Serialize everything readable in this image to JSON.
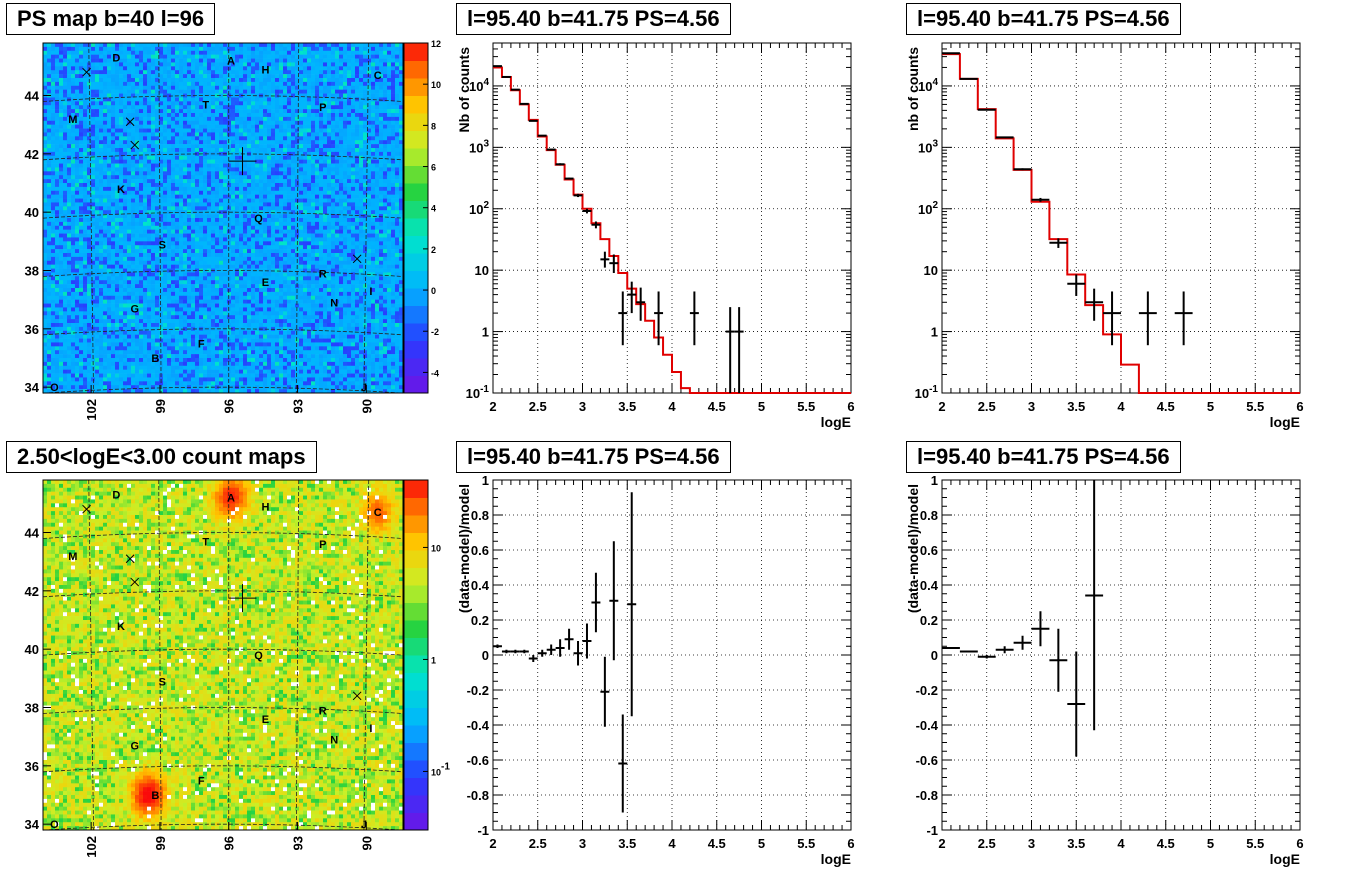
{
  "chart_data": [
    {
      "id": "ps-map",
      "type": "heatmap",
      "title": "PS map b=40 l=96",
      "x_ticks": [
        "102",
        "99",
        "96",
        "93",
        "90"
      ],
      "y_ticks": [
        "34",
        "36",
        "38",
        "40",
        "42",
        "44"
      ],
      "colorbar_ticks": [
        "-4",
        "-2",
        "0",
        "2",
        "4",
        "6",
        "8",
        "10",
        "12"
      ],
      "colorbar_range": [
        -5,
        12
      ],
      "colorscale": "rainbow-linear",
      "background_level": 0,
      "sources": [
        {
          "label": "A",
          "l": 95.9,
          "b": 45.2
        },
        {
          "label": "H",
          "l": 94.4,
          "b": 44.9
        },
        {
          "label": "C",
          "l": 89.5,
          "b": 44.7
        },
        {
          "label": "D",
          "l": 100.9,
          "b": 45.3
        },
        {
          "label": "T",
          "l": 97.0,
          "b": 43.7
        },
        {
          "label": "P",
          "l": 91.9,
          "b": 43.6
        },
        {
          "label": "M",
          "l": 102.8,
          "b": 43.2
        },
        {
          "label": "K",
          "l": 100.7,
          "b": 40.8
        },
        {
          "label": "Q",
          "l": 94.7,
          "b": 39.8
        },
        {
          "label": "S",
          "l": 98.9,
          "b": 38.9
        },
        {
          "label": "E",
          "l": 94.4,
          "b": 37.6
        },
        {
          "label": "R",
          "l": 91.9,
          "b": 37.9
        },
        {
          "label": "I",
          "l": 89.8,
          "b": 37.3
        },
        {
          "label": "G",
          "l": 100.1,
          "b": 36.7
        },
        {
          "label": "N",
          "l": 91.4,
          "b": 36.9
        },
        {
          "label": "F",
          "l": 97.2,
          "b": 35.5
        },
        {
          "label": "B",
          "l": 99.2,
          "b": 35.0
        },
        {
          "label": "O",
          "l": 103.6,
          "b": 34.0
        },
        {
          "label": "J",
          "l": 90.1,
          "b": 34.0
        }
      ],
      "markers_x": [
        {
          "l": 102.2,
          "b": 44.8
        },
        {
          "l": 100.3,
          "b": 43.1
        },
        {
          "l": 100.1,
          "b": 42.3
        },
        {
          "l": 90.4,
          "b": 38.4
        }
      ],
      "center_cross": {
        "l": 95.4,
        "b": 41.75
      }
    },
    {
      "id": "spectrum-1",
      "type": "line",
      "title": "l=95.40 b=41.75 PS=4.56",
      "xlabel": "logE",
      "ylabel": "Nb of counts",
      "xlim": [
        2,
        6
      ],
      "ylim": [
        0.1,
        50000
      ],
      "yscale": "log",
      "x_ticks": [
        "2",
        "2.5",
        "3",
        "3.5",
        "4",
        "4.5",
        "5",
        "5.5",
        "6"
      ],
      "y_ticks": [
        "10^-1",
        "1",
        "10",
        "10^2",
        "10^3",
        "10^4"
      ],
      "model_series": {
        "name": "model",
        "color": "#e00000",
        "edges": [
          2.0,
          2.1,
          2.2,
          2.3,
          2.4,
          2.5,
          2.6,
          2.7,
          2.8,
          2.9,
          3.0,
          3.1,
          3.2,
          3.3,
          3.4,
          3.5,
          3.6,
          3.7,
          3.8,
          3.9,
          4.0,
          4.1,
          4.2,
          6.0
        ],
        "values": [
          20000,
          14000,
          8500,
          5000,
          2800,
          1500,
          900,
          520,
          300,
          170,
          100,
          58,
          32,
          17,
          9,
          5,
          2.8,
          1.5,
          0.8,
          0.42,
          0.22,
          0.12,
          0.1
        ]
      },
      "data_series": {
        "name": "data",
        "color": "#000000",
        "x": [
          2.05,
          2.15,
          2.25,
          2.35,
          2.45,
          2.55,
          2.65,
          2.75,
          2.85,
          2.95,
          3.05,
          3.15,
          3.25,
          3.35,
          3.45,
          3.55,
          3.65,
          3.85,
          4.25,
          4.65,
          4.75
        ],
        "xerr": 0.05,
        "y": [
          21000,
          14000,
          8700,
          5100,
          2700,
          1550,
          920,
          530,
          310,
          165,
          92,
          55,
          15,
          13,
          2,
          4,
          3,
          2,
          2,
          1,
          1
        ],
        "ylo": [
          20800,
          13800,
          8600,
          5050,
          2680,
          1530,
          900,
          510,
          300,
          155,
          84,
          48,
          11,
          9,
          0.6,
          2,
          1.5,
          0.6,
          0.6,
          0.1,
          0.1
        ],
        "yhi": [
          21200,
          14200,
          8800,
          5150,
          2720,
          1570,
          940,
          550,
          320,
          175,
          100,
          62,
          20,
          18,
          4.5,
          6.5,
          5.2,
          4.5,
          4.5,
          2.5,
          2.5
        ]
      }
    },
    {
      "id": "spectrum-2",
      "type": "line",
      "title": "l=95.40 b=41.75 PS=4.56",
      "xlabel": "logE",
      "ylabel": "nb of counts",
      "xlim": [
        2,
        6
      ],
      "ylim": [
        0.1,
        50000
      ],
      "yscale": "log",
      "x_ticks": [
        "2",
        "2.5",
        "3",
        "3.5",
        "4",
        "4.5",
        "5",
        "5.5",
        "6"
      ],
      "y_ticks": [
        "10^-1",
        "1",
        "10",
        "10^2",
        "10^3",
        "10^4"
      ],
      "model_series": {
        "name": "model",
        "color": "#e00000",
        "edges": [
          2.0,
          2.2,
          2.4,
          2.6,
          2.8,
          3.0,
          3.2,
          3.4,
          3.6,
          3.8,
          4.0,
          4.2,
          6.0
        ],
        "values": [
          33000,
          13000,
          4200,
          1400,
          430,
          130,
          32,
          8.5,
          2.7,
          0.9,
          0.29,
          0.1
        ]
      },
      "data_series": {
        "name": "data",
        "color": "#000000",
        "x": [
          2.1,
          2.3,
          2.5,
          2.7,
          2.9,
          3.1,
          3.3,
          3.5,
          3.7,
          3.9,
          4.3,
          4.7
        ],
        "xerr": 0.1,
        "y": [
          34000,
          13000,
          4100,
          1450,
          440,
          140,
          28,
          6,
          3,
          2,
          2,
          2
        ],
        "ylo": [
          33800,
          12900,
          4050,
          1420,
          425,
          130,
          23,
          3.8,
          1.5,
          0.6,
          0.6,
          0.6
        ],
        "yhi": [
          34200,
          13100,
          4150,
          1480,
          455,
          150,
          33,
          8.5,
          5,
          4.5,
          4.5,
          4.5
        ]
      }
    },
    {
      "id": "count-map",
      "type": "heatmap",
      "title": "2.50<logE<3.00 count maps",
      "x_ticks": [
        "102",
        "99",
        "96",
        "93",
        "90"
      ],
      "y_ticks": [
        "34",
        "36",
        "38",
        "40",
        "42",
        "44"
      ],
      "colorbar_ticks": [
        "10^-1",
        "1",
        "10"
      ],
      "colorbar_range": [
        0.03,
        40
      ],
      "colorscale": "rainbow-log",
      "background_level": 5,
      "hotspots": [
        {
          "label": "A",
          "l": 95.9,
          "b": 45.2,
          "level": 30
        },
        {
          "label": "B",
          "l": 99.5,
          "b": 35.0,
          "level": 40
        },
        {
          "label": "C",
          "l": 89.5,
          "b": 44.7,
          "level": 18
        }
      ],
      "center_cross": {
        "l": 95.4,
        "b": 41.75
      }
    },
    {
      "id": "residual-1",
      "type": "scatter",
      "title": "l=95.40 b=41.75 PS=4.56",
      "xlabel": "logE",
      "ylabel": "(data-model)/model",
      "xlim": [
        2,
        6
      ],
      "ylim": [
        -1,
        1
      ],
      "x_ticks": [
        "2",
        "2.5",
        "3",
        "3.5",
        "4",
        "4.5",
        "5",
        "5.5",
        "6"
      ],
      "y_ticks": [
        "-1",
        "-0.8",
        "-0.6",
        "-0.4",
        "-0.2",
        "0",
        "0.2",
        "0.4",
        "0.6",
        "0.8",
        "1"
      ],
      "data_series": {
        "name": "residual",
        "x": [
          2.05,
          2.15,
          2.25,
          2.35,
          2.45,
          2.55,
          2.65,
          2.75,
          2.85,
          2.95,
          3.05,
          3.15,
          3.25,
          3.35,
          3.45,
          3.55
        ],
        "xerr": 0.05,
        "y": [
          0.05,
          0.02,
          0.02,
          0.02,
          -0.02,
          0.01,
          0.03,
          0.04,
          0.09,
          0.01,
          0.08,
          0.3,
          -0.21,
          0.31,
          -0.62,
          0.29
        ],
        "yerr": [
          0.01,
          0.01,
          0.01,
          0.01,
          0.02,
          0.02,
          0.03,
          0.05,
          0.06,
          0.07,
          0.1,
          0.17,
          0.2,
          0.34,
          0.28,
          0.64
        ]
      }
    },
    {
      "id": "residual-2",
      "type": "scatter",
      "title": "l=95.40 b=41.75 PS=4.56",
      "xlabel": "logE",
      "ylabel": "(data-model)/model",
      "xlim": [
        2,
        6
      ],
      "ylim": [
        -1,
        1
      ],
      "x_ticks": [
        "2",
        "2.5",
        "3",
        "3.5",
        "4",
        "4.5",
        "5",
        "5.5",
        "6"
      ],
      "y_ticks": [
        "-1",
        "-0.8",
        "-0.6",
        "-0.4",
        "-0.2",
        "0",
        "0.2",
        "0.4",
        "0.6",
        "0.8",
        "1"
      ],
      "data_series": {
        "name": "residual",
        "x": [
          2.1,
          2.3,
          2.5,
          2.7,
          2.9,
          3.1,
          3.3,
          3.5,
          3.7
        ],
        "xerr": 0.1,
        "y": [
          0.04,
          0.02,
          -0.01,
          0.03,
          0.07,
          0.15,
          -0.03,
          -0.28,
          0.34
        ],
        "yerr": [
          0.005,
          0.005,
          0.01,
          0.02,
          0.04,
          0.1,
          0.18,
          0.3,
          0.77
        ]
      }
    }
  ]
}
